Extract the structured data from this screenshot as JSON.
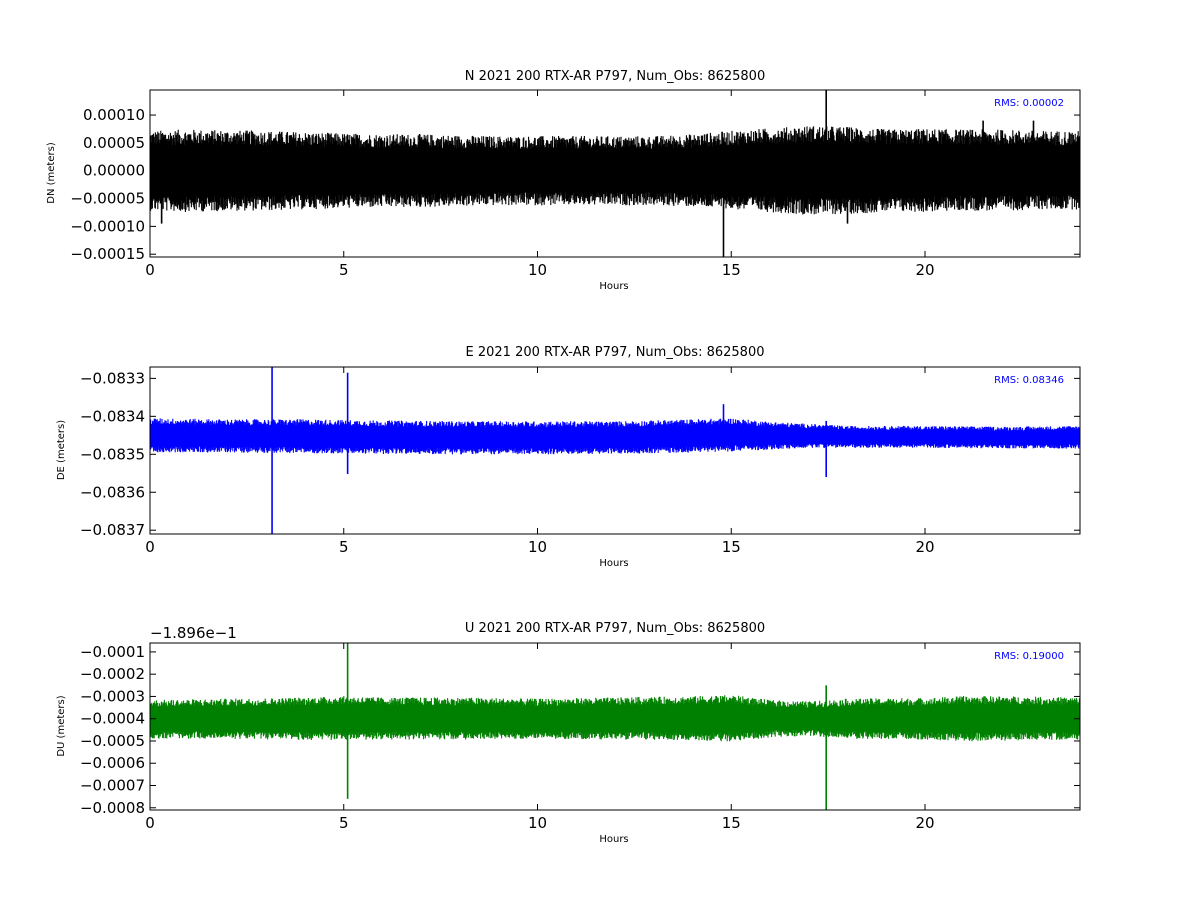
{
  "chart_data": [
    {
      "type": "line",
      "title": "N 2021 200 RTX-AR  P797, Num_Obs: 8625800",
      "xlabel": "Hours",
      "ylabel": "DN (meters)",
      "xlim": [
        0,
        24
      ],
      "ylim": [
        -0.000155,
        0.000145
      ],
      "xticks": [
        0,
        5,
        10,
        15,
        20
      ],
      "xtick_labels": [
        "0",
        "5",
        "10",
        "15",
        "20"
      ],
      "yticks": [
        0.0001,
        5e-05,
        0.0,
        -5e-05,
        -0.0001,
        -0.00015
      ],
      "ytick_labels": [
        "0.00010",
        "0.00005",
        "0.00000",
        "−0.00005",
        "−0.00010",
        "−0.00015"
      ],
      "offset_label": "",
      "series": [
        {
          "color": "#000000",
          "band": [
            [
              0,
              -6e-05,
              6e-05
            ],
            [
              1,
              -6.2e-05,
              6.2e-05
            ],
            [
              2,
              -6e-05,
              6.1e-05
            ],
            [
              3,
              -6e-05,
              6e-05
            ],
            [
              4,
              -5.8e-05,
              5.8e-05
            ],
            [
              5,
              -5.6e-05,
              5.6e-05
            ],
            [
              6,
              -5.5e-05,
              5.5e-05
            ],
            [
              7,
              -5.5e-05,
              5.5e-05
            ],
            [
              8,
              -5.3e-05,
              5.3e-05
            ],
            [
              9,
              -5.2e-05,
              5.2e-05
            ],
            [
              10,
              -5.2e-05,
              5.2e-05
            ],
            [
              11,
              -5.2e-05,
              5.2e-05
            ],
            [
              12,
              -5.2e-05,
              5.2e-05
            ],
            [
              13,
              -5.2e-05,
              5.2e-05
            ],
            [
              14,
              -5.4e-05,
              5.5e-05
            ],
            [
              15,
              -5.8e-05,
              6e-05
            ],
            [
              16,
              -6.2e-05,
              6.4e-05
            ],
            [
              17,
              -6.6e-05,
              6.8e-05
            ],
            [
              18,
              -6.5e-05,
              6.6e-05
            ],
            [
              19,
              -6.2e-05,
              6.2e-05
            ],
            [
              20,
              -6.2e-05,
              6.3e-05
            ],
            [
              21,
              -6e-05,
              6.2e-05
            ],
            [
              22,
              -6e-05,
              6.2e-05
            ],
            [
              23,
              -5.8e-05,
              6e-05
            ],
            [
              24,
              -5.8e-05,
              6e-05
            ]
          ],
          "spikes": [
            [
              14.8,
              -0.000155
            ],
            [
              17.45,
              0.000145
            ],
            [
              18.0,
              -9.5e-05
            ],
            [
              0.3,
              -9.5e-05
            ],
            [
              21.5,
              9e-05
            ],
            [
              22.8,
              9e-05
            ]
          ]
        }
      ],
      "rms_label": "RMS:  0.00002",
      "rms_color": "#0000ff"
    },
    {
      "type": "line",
      "title": "E 2021 200 RTX-AR  P797, Num_Obs: 8625800",
      "xlabel": "Hours",
      "ylabel": "DE (meters)",
      "xlim": [
        0,
        24
      ],
      "ylim": [
        -0.08371,
        -0.08327
      ],
      "xticks": [
        0,
        5,
        10,
        15,
        20
      ],
      "xtick_labels": [
        "0",
        "5",
        "10",
        "15",
        "20"
      ],
      "yticks": [
        -0.0833,
        -0.0834,
        -0.0835,
        -0.0836,
        -0.0837
      ],
      "ytick_labels": [
        "−0.0833",
        "−0.0834",
        "−0.0835",
        "−0.0836",
        "−0.0837"
      ],
      "offset_label": "",
      "series": [
        {
          "color": "#0000ff",
          "band": [
            [
              0,
              -0.083488,
              -0.083412
            ],
            [
              2,
              -0.083488,
              -0.083415
            ],
            [
              4,
              -0.08349,
              -0.083415
            ],
            [
              6,
              -0.083492,
              -0.083418
            ],
            [
              8,
              -0.083493,
              -0.08342
            ],
            [
              10,
              -0.083493,
              -0.08342
            ],
            [
              12,
              -0.083492,
              -0.08342
            ],
            [
              14,
              -0.083488,
              -0.083415
            ],
            [
              15,
              -0.083485,
              -0.083412
            ],
            [
              16,
              -0.083482,
              -0.08342
            ],
            [
              17,
              -0.083478,
              -0.083425
            ],
            [
              18,
              -0.083478,
              -0.08343
            ],
            [
              20,
              -0.083478,
              -0.08343
            ],
            [
              22,
              -0.08348,
              -0.083432
            ],
            [
              24,
              -0.08348,
              -0.08343
            ]
          ],
          "spikes": [
            [
              3.15,
              -0.08371
            ],
            [
              3.15,
              -0.08327
            ],
            [
              5.1,
              -0.083285
            ],
            [
              5.1,
              -0.083552
            ],
            [
              14.8,
              -0.083368
            ],
            [
              17.45,
              -0.083412
            ],
            [
              17.45,
              -0.08356
            ]
          ]
        }
      ],
      "rms_label": "RMS:  0.08346",
      "rms_color": "#0000ff"
    },
    {
      "type": "line",
      "title": "U 2021 200 RTX-AR  P797, Num_Obs: 8625800",
      "xlabel": "Hours",
      "ylabel": "DU (meters)",
      "xlim": [
        0,
        24
      ],
      "ylim": [
        -0.00081,
        -6e-05
      ],
      "xticks": [
        0,
        5,
        10,
        15,
        20
      ],
      "xtick_labels": [
        "0",
        "5",
        "10",
        "15",
        "20"
      ],
      "yticks": [
        -0.0001,
        -0.0002,
        -0.0003,
        -0.0004,
        -0.0005,
        -0.0006,
        -0.0007,
        -0.0008
      ],
      "ytick_labels": [
        "−0.0001",
        "−0.0002",
        "−0.0003",
        "−0.0004",
        "−0.0005",
        "−0.0006",
        "−0.0007",
        "−0.0008"
      ],
      "offset_label": "−1.896e−1",
      "series": [
        {
          "color": "#008000",
          "band": [
            [
              0,
              -0.000475,
              -0.00033
            ],
            [
              2,
              -0.000475,
              -0.000325
            ],
            [
              4,
              -0.00048,
              -0.00032
            ],
            [
              5,
              -0.00048,
              -0.000315
            ],
            [
              6,
              -0.000478,
              -0.00032
            ],
            [
              8,
              -0.000478,
              -0.00032
            ],
            [
              10,
              -0.000475,
              -0.000325
            ],
            [
              12,
              -0.000478,
              -0.00032
            ],
            [
              14,
              -0.00048,
              -0.000315
            ],
            [
              15,
              -0.000485,
              -0.00031
            ],
            [
              16,
              -0.00047,
              -0.00033
            ],
            [
              17,
              -0.000465,
              -0.000335
            ],
            [
              18,
              -0.000475,
              -0.000325
            ],
            [
              20,
              -0.000478,
              -0.000322
            ],
            [
              21,
              -0.000485,
              -0.000315
            ],
            [
              22,
              -0.000482,
              -0.000315
            ],
            [
              24,
              -0.000478,
              -0.00032
            ]
          ],
          "spikes": [
            [
              5.1,
              -6e-05
            ],
            [
              5.1,
              -0.00076
            ],
            [
              17.45,
              -0.00025
            ],
            [
              17.45,
              -0.00081
            ]
          ]
        }
      ],
      "rms_label": "RMS:  0.19000",
      "rms_color": "#0000ff"
    }
  ]
}
